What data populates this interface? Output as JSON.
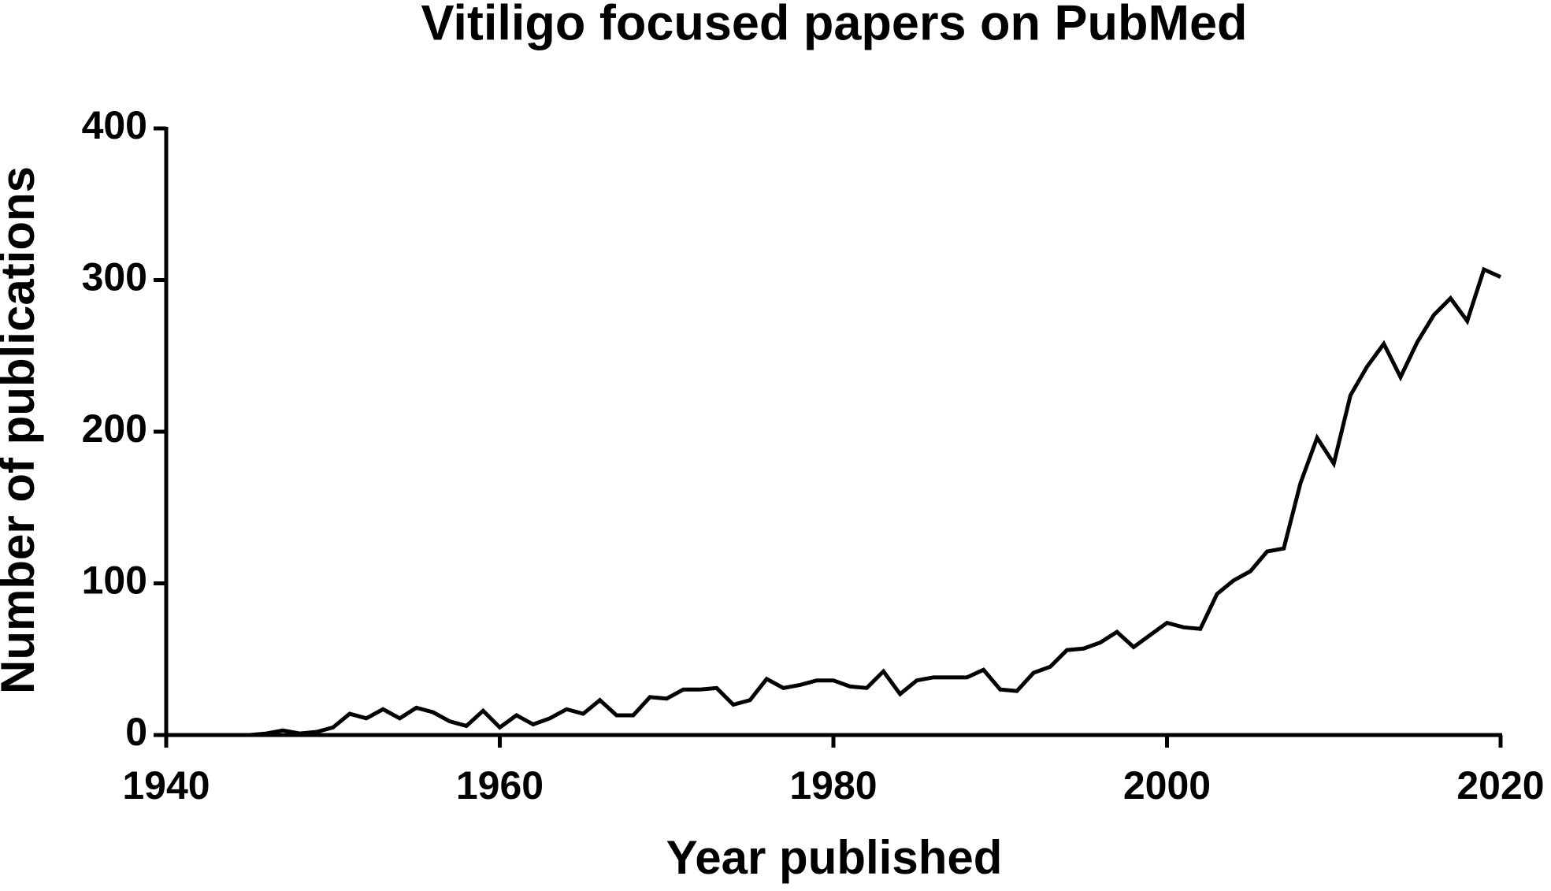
{
  "chart_data": {
    "type": "line",
    "title": "Vitiligo focused papers on PubMed",
    "x_label": "Year published",
    "y_label": "Number of publications",
    "x": [
      1940,
      1941,
      1942,
      1943,
      1944,
      1945,
      1946,
      1947,
      1948,
      1949,
      1950,
      1951,
      1952,
      1953,
      1954,
      1955,
      1956,
      1957,
      1958,
      1959,
      1960,
      1961,
      1962,
      1963,
      1964,
      1965,
      1966,
      1967,
      1968,
      1969,
      1970,
      1971,
      1972,
      1973,
      1974,
      1975,
      1976,
      1977,
      1978,
      1979,
      1980,
      1981,
      1982,
      1983,
      1984,
      1985,
      1986,
      1987,
      1988,
      1989,
      1990,
      1991,
      1992,
      1993,
      1994,
      1995,
      1996,
      1997,
      1998,
      1999,
      2000,
      2001,
      2002,
      2003,
      2004,
      2005,
      2006,
      2007,
      2008,
      2009,
      2010,
      2011,
      2012,
      2013,
      2014,
      2015,
      2016,
      2017,
      2018,
      2019,
      2020
    ],
    "values": [
      0,
      0,
      0,
      0,
      0,
      0,
      1,
      3,
      1,
      2,
      5,
      14,
      11,
      17,
      11,
      18,
      15,
      9,
      6,
      16,
      5,
      13,
      7,
      11,
      17,
      14,
      23,
      13,
      13,
      25,
      24,
      30,
      30,
      31,
      20,
      23,
      37,
      31,
      33,
      36,
      36,
      32,
      31,
      42,
      27,
      36,
      38,
      38,
      38,
      43,
      30,
      29,
      41,
      45,
      56,
      57,
      61,
      68,
      58,
      66,
      74,
      71,
      70,
      93,
      102,
      108,
      121,
      123,
      166,
      196,
      179,
      224,
      243,
      258,
      236,
      259,
      277,
      288,
      273,
      307,
      302
    ],
    "color": "#000000",
    "xlim": [
      1940,
      2020
    ],
    "xticks": [
      1940,
      1960,
      1980,
      2000,
      2020
    ],
    "ylim": [
      0,
      400
    ],
    "yticks": [
      0,
      100,
      200,
      300,
      400
    ]
  }
}
